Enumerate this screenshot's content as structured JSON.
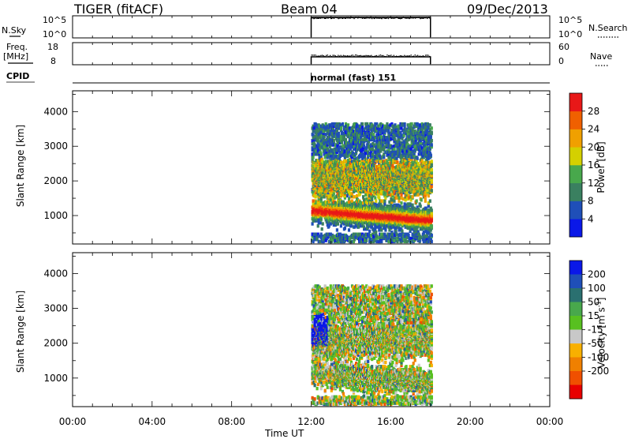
{
  "header": {
    "radar": "TIGER (fitACF)",
    "beam": "Beam 04",
    "date": "09/Dec/2013"
  },
  "param_panel": {
    "nsky_label": "N.Sky",
    "nsky_ticks": [
      "10^5",
      "10^0"
    ],
    "nsearch_label": "N.Search",
    "freq_label_1": "Freq.",
    "freq_label_2": "[MHz]",
    "freq_ticks": [
      "18",
      "8"
    ],
    "nave_ticks": [
      "60",
      "0"
    ],
    "nave_label": "Nave",
    "cpid_label": "CPID",
    "cpid_text": "normal (fast) 151"
  },
  "colors": {
    "power_scale": [
      "#0a18e8",
      "#1f4fb8",
      "#3a8060",
      "#48a84c",
      "#d4d000",
      "#f0a000",
      "#f06000",
      "#e81818"
    ],
    "velocity_scale": [
      "#e80000",
      "#f05000",
      "#f08000",
      "#f8b000",
      "#c8c8c8",
      "#58c020",
      "#48a84c",
      "#2a7070",
      "#1f4fb8",
      "#0a18e8"
    ]
  },
  "chart_data": [
    {
      "type": "heatmap",
      "title": "",
      "xlabel": "Time UT",
      "ylabel": "Slant Range [km]",
      "x_ticks": [
        "00:00",
        "04:00",
        "08:00",
        "12:00",
        "16:00",
        "20:00",
        "00:00"
      ],
      "y_ticks": [
        1000,
        2000,
        3000,
        4000
      ],
      "xlim": [
        0,
        24
      ],
      "ylim": [
        180,
        4600
      ],
      "data_time_range": [
        12.0,
        18.0
      ],
      "colorbar": {
        "label": "Power [dB]",
        "ticks": [
          "4",
          "8",
          "12",
          "16",
          "20",
          "24",
          "28"
        ],
        "range": [
          0,
          32
        ]
      }
    },
    {
      "type": "heatmap",
      "title": "",
      "xlabel": "Time UT",
      "ylabel": "Slant Range [km]",
      "x_ticks": [
        "00:00",
        "04:00",
        "08:00",
        "12:00",
        "16:00",
        "20:00",
        "00:00"
      ],
      "y_ticks": [
        1000,
        2000,
        3000,
        4000
      ],
      "xlim": [
        0,
        24
      ],
      "ylim": [
        180,
        4600
      ],
      "data_time_range": [
        12.0,
        18.0
      ],
      "colorbar": {
        "label": "Velocity [m s-1]",
        "label_main": "Velocity [m s",
        "label_sup": "-1",
        "label_end": "]",
        "ticks": [
          "200",
          "100",
          "50",
          "15",
          "-15",
          "-50",
          "-100",
          "-200"
        ]
      }
    }
  ]
}
